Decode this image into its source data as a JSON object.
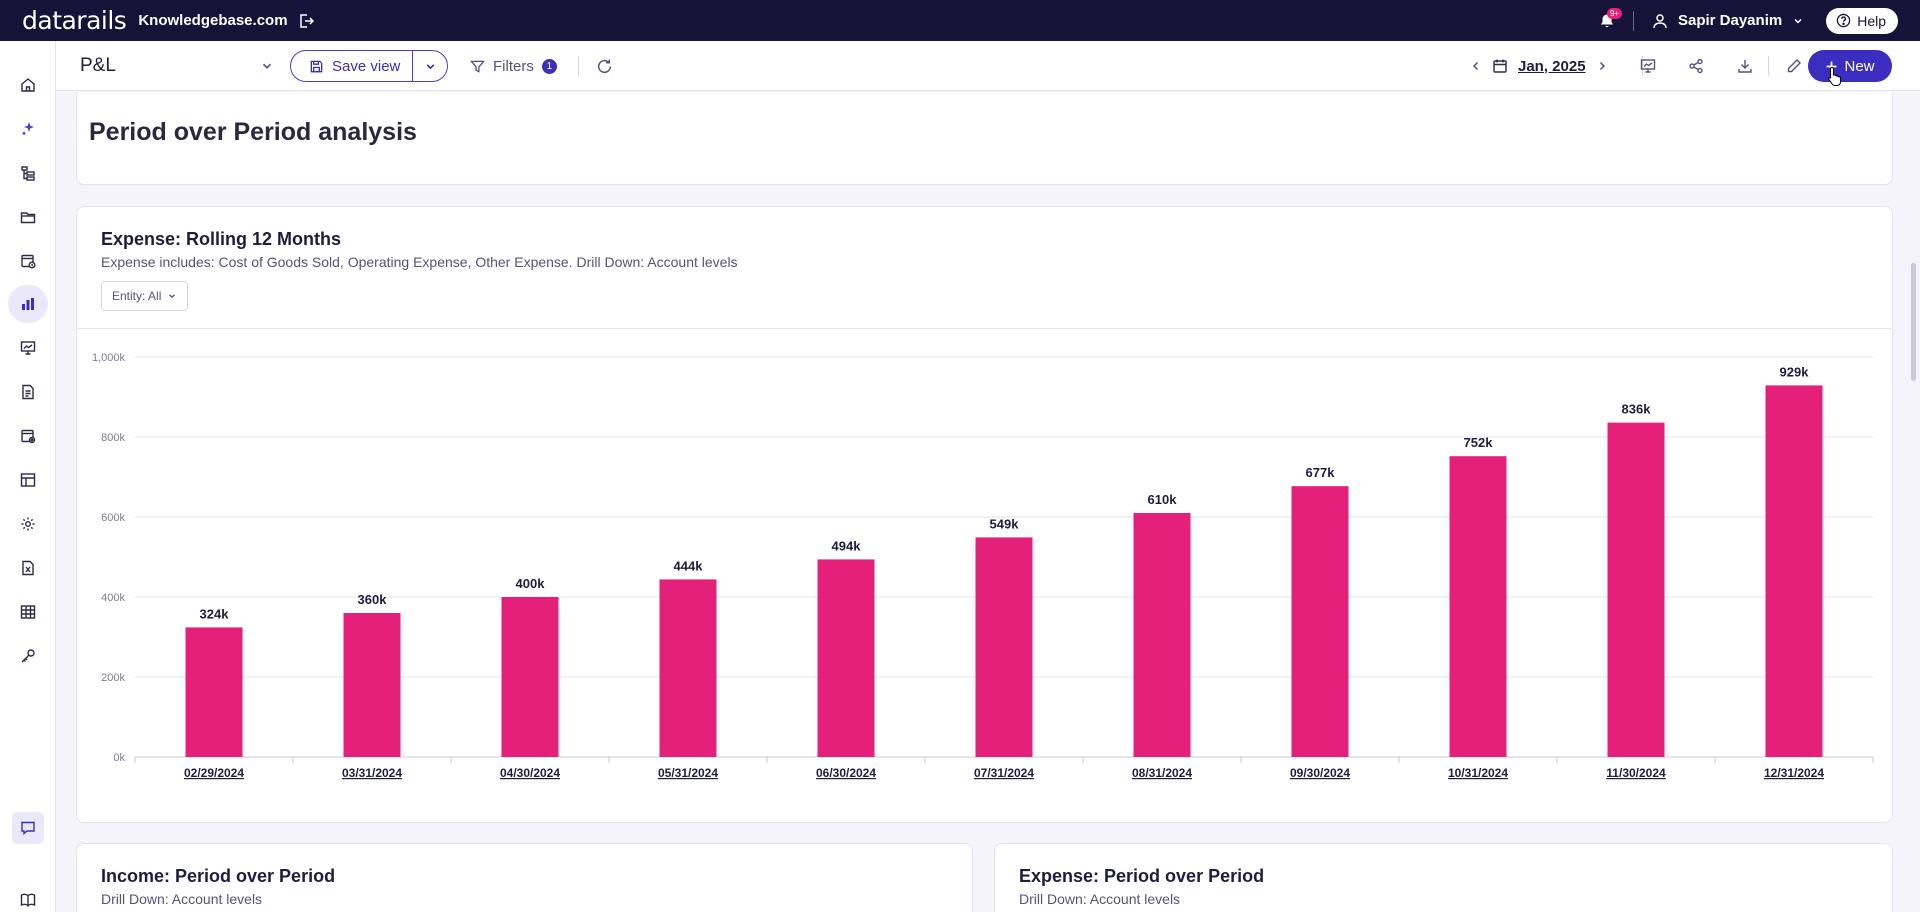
{
  "topbar": {
    "logo": "datarails",
    "company": "Knowledgebase.com",
    "notification_badge": "9+",
    "user_name": "Sapir Dayanim",
    "help_label": "Help"
  },
  "toolbar": {
    "view_name": "P&L",
    "save_view_label": "Save view",
    "filters_label": "Filters",
    "filters_count": "1",
    "period_label": "Jan, 2025",
    "new_label": "New"
  },
  "nav_icons": [
    "home-icon",
    "ai-sparkle-icon",
    "hierarchy-icon",
    "folder-icon",
    "scheduled-report-icon",
    "bar-chart-icon",
    "presentation-icon",
    "document-icon",
    "calendar-settings-icon",
    "table-layout-icon",
    "settings-icon",
    "excel-file-icon",
    "grid-table-icon",
    "key-icon",
    "chat-icon",
    "book-icon"
  ],
  "sections": {
    "pop_title": "Period over Period analysis",
    "expense_title": "Expense: Rolling 12 Months",
    "expense_subtitle": "Expense includes: Cost of Goods Sold, Operating Expense, Other Expense. Drill Down: Account levels",
    "entity_filter": "Entity: All",
    "income_pop_title": "Income: Period over Period",
    "income_pop_subtitle": "Drill Down: Account levels",
    "expense_pop_title": "Expense: Period over Period",
    "expense_pop_subtitle": "Drill Down: Account levels"
  },
  "colors": {
    "topbar": "#161339",
    "accent": "#3b2dbf",
    "bar": "#e5207a"
  },
  "chart_data": {
    "type": "bar",
    "categories": [
      "02/29/2024",
      "03/31/2024",
      "04/30/2024",
      "05/31/2024",
      "06/30/2024",
      "07/31/2024",
      "08/31/2024",
      "09/30/2024",
      "10/31/2024",
      "11/30/2024",
      "12/31/2024"
    ],
    "values": [
      324,
      360,
      400,
      444,
      494,
      549,
      610,
      677,
      752,
      836,
      929
    ],
    "value_labels": [
      "324k",
      "360k",
      "400k",
      "444k",
      "494k",
      "549k",
      "610k",
      "677k",
      "752k",
      "836k",
      "929k"
    ],
    "yticks": [
      0,
      200,
      400,
      600,
      800,
      1000
    ],
    "ytick_labels": [
      "0k",
      "200k",
      "400k",
      "600k",
      "800k",
      "1,000k"
    ],
    "ylim": [
      0,
      1000
    ],
    "grid": true
  }
}
